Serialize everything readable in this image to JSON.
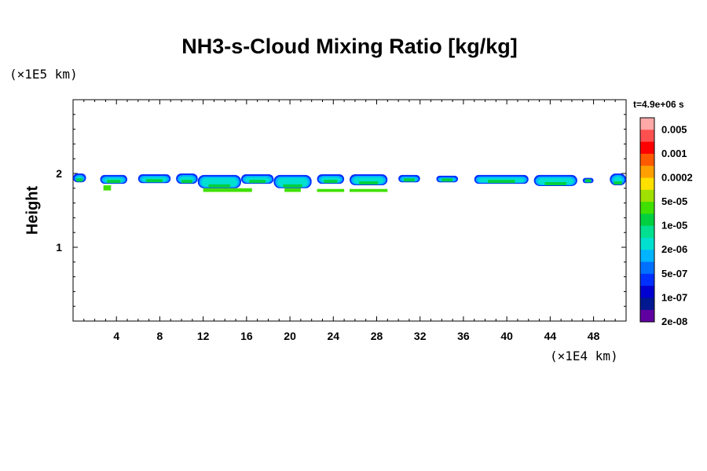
{
  "chart_data": {
    "type": "heatmap",
    "title": "NH3-s-Cloud Mixing Ratio [kg/kg]",
    "xlabel": "",
    "ylabel": "Height",
    "x_unit": "(×1E4 km)",
    "y_unit": "(×1E5 km)",
    "time_label": "t=4.9e+06 s",
    "xlim": [
      0,
      51
    ],
    "ylim": [
      0,
      3
    ],
    "x_ticks": [
      4,
      8,
      12,
      16,
      20,
      24,
      28,
      32,
      36,
      40,
      44,
      48
    ],
    "y_ticks": [
      1,
      2
    ],
    "colorbar": {
      "labels": [
        "0.005",
        "0.001",
        "0.0002",
        "5e-05",
        "1e-05",
        "2e-06",
        "5e-07",
        "1e-07",
        "2e-08"
      ],
      "colors": [
        "#ffa8a8",
        "#ff5050",
        "#ff0000",
        "#ff5a00",
        "#ffa000",
        "#ffe000",
        "#a0e000",
        "#40e000",
        "#00d040",
        "#00e090",
        "#00e0d0",
        "#00b4ff",
        "#0070ff",
        "#0030ff",
        "#0000d0",
        "#001890",
        "#6000a0"
      ]
    },
    "cloud_layer": {
      "height_top": 2.0,
      "height_bottom": 1.75,
      "description_values": [
        {
          "x_start": 0.0,
          "x_end": 1.2,
          "top": 2.0,
          "bottom": 1.88
        },
        {
          "x_start": 2.5,
          "x_end": 5.0,
          "top": 1.98,
          "bottom": 1.86
        },
        {
          "x_start": 6.0,
          "x_end": 9.0,
          "top": 1.99,
          "bottom": 1.87
        },
        {
          "x_start": 9.5,
          "x_end": 11.5,
          "top": 2.0,
          "bottom": 1.86
        },
        {
          "x_start": 11.5,
          "x_end": 15.5,
          "top": 1.98,
          "bottom": 1.8
        },
        {
          "x_start": 15.5,
          "x_end": 18.5,
          "top": 1.99,
          "bottom": 1.86
        },
        {
          "x_start": 18.5,
          "x_end": 22.0,
          "top": 1.98,
          "bottom": 1.8
        },
        {
          "x_start": 22.5,
          "x_end": 25.0,
          "top": 1.99,
          "bottom": 1.86
        },
        {
          "x_start": 25.5,
          "x_end": 29.0,
          "top": 1.99,
          "bottom": 1.84
        },
        {
          "x_start": 30.0,
          "x_end": 32.0,
          "top": 1.98,
          "bottom": 1.88
        },
        {
          "x_start": 33.5,
          "x_end": 35.5,
          "top": 1.97,
          "bottom": 1.88
        },
        {
          "x_start": 37.0,
          "x_end": 42.0,
          "top": 1.98,
          "bottom": 1.86
        },
        {
          "x_start": 42.5,
          "x_end": 46.5,
          "top": 1.98,
          "bottom": 1.83
        },
        {
          "x_start": 47.0,
          "x_end": 48.0,
          "top": 1.94,
          "bottom": 1.87
        },
        {
          "x_start": 49.5,
          "x_end": 51.0,
          "top": 2.0,
          "bottom": 1.84
        }
      ],
      "lower_green": [
        {
          "x_start": 2.8,
          "x_end": 3.5,
          "top": 1.84,
          "bottom": 1.77
        },
        {
          "x_start": 12.0,
          "x_end": 16.5,
          "top": 1.8,
          "bottom": 1.75
        },
        {
          "x_start": 19.5,
          "x_end": 21.0,
          "top": 1.8,
          "bottom": 1.75
        },
        {
          "x_start": 22.5,
          "x_end": 25.0,
          "top": 1.79,
          "bottom": 1.75
        },
        {
          "x_start": 25.5,
          "x_end": 29.0,
          "top": 1.79,
          "bottom": 1.75
        }
      ]
    }
  }
}
